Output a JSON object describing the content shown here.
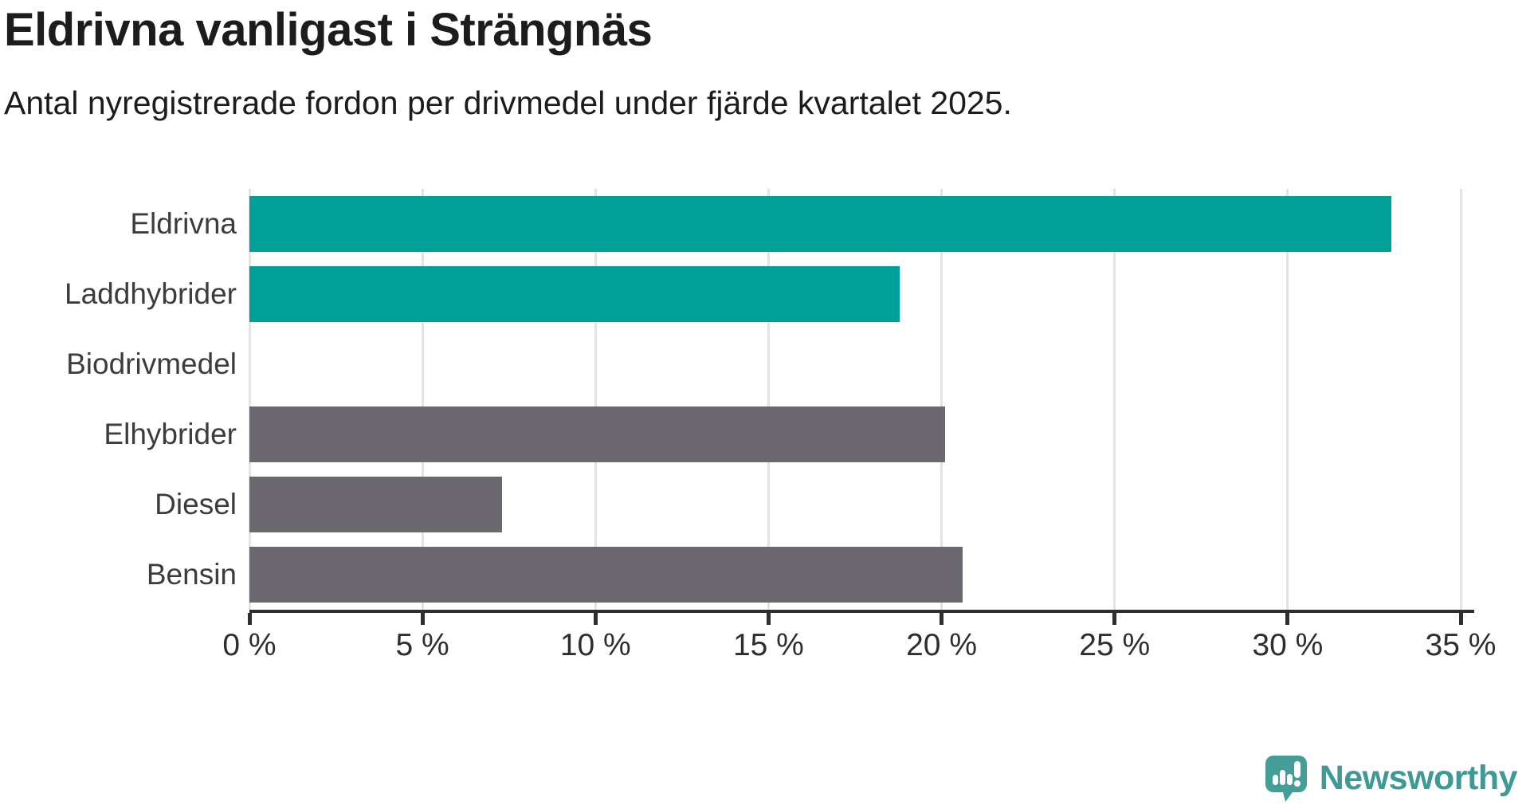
{
  "chart_data": {
    "type": "bar",
    "orientation": "horizontal",
    "title": "Eldrivna vanligast i Strängnäs",
    "subtitle": "Antal nyregistrerade fordon per drivmedel under fjärde kvartalet 2025.",
    "categories": [
      "Eldrivna",
      "Laddhybrider",
      "Biodrivmedel",
      "Elhybrider",
      "Diesel",
      "Bensin"
    ],
    "values": [
      33,
      18.8,
      0,
      20.1,
      7.3,
      20.6
    ],
    "unit": "%",
    "bar_colors": [
      "#00a099",
      "#00a099",
      "#00a099",
      "#6b6870",
      "#6b6870",
      "#6b6870"
    ],
    "x_tick_values": [
      0,
      5,
      10,
      15,
      20,
      25,
      30,
      35
    ],
    "x_tick_labels": [
      "0 %",
      "5 %",
      "10 %",
      "15 %",
      "20 %",
      "25 %",
      "30 %",
      "35 %"
    ],
    "xlim": [
      0,
      35
    ],
    "grid": true,
    "legend": false
  },
  "colors": {
    "highlight_bar": "#00a099",
    "default_bar": "#6b6870",
    "gridline": "#e3e3e3",
    "axis": "#2e2e2e",
    "logo_teal": "#459d98"
  },
  "branding": {
    "wordmark": "Newsworthy"
  }
}
